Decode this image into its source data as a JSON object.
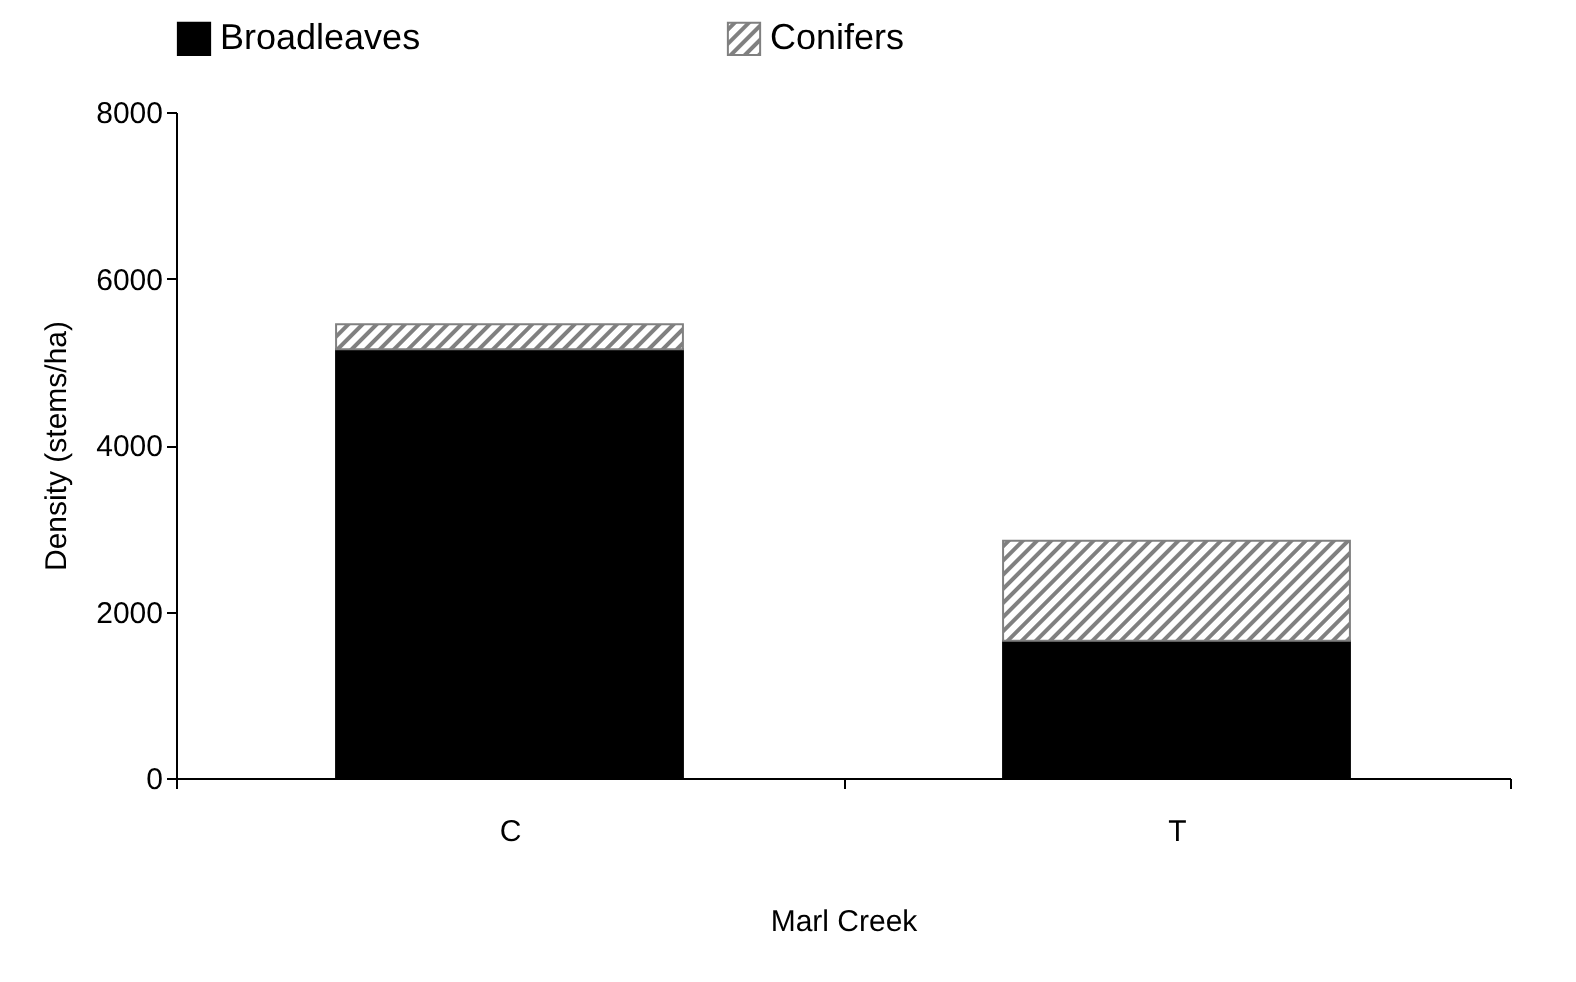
{
  "chart_data": {
    "type": "bar",
    "stacked": true,
    "xlabel": "Marl Creek",
    "ylabel": "Density (stems/ha)",
    "categories": [
      "C",
      "T"
    ],
    "series": [
      {
        "name": "Broadleaves",
        "color": "#000000",
        "values": [
          5150,
          1650
        ]
      },
      {
        "name": "Conifers",
        "color": "#808080",
        "values": [
          300,
          1200
        ]
      }
    ],
    "ylim": [
      0,
      8000
    ],
    "yticks": [
      0,
      2000,
      4000,
      6000,
      8000
    ],
    "grid": false,
    "legend": "top"
  }
}
